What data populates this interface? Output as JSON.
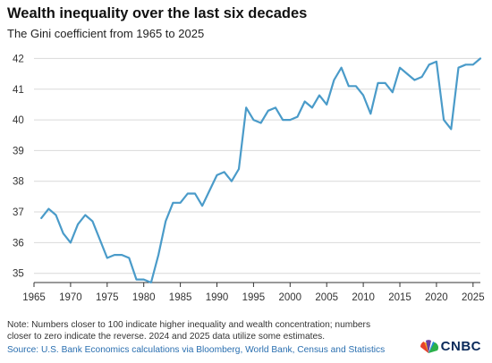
{
  "header": {
    "title": "Wealth inequality over the last six decades",
    "subtitle": "The Gini coefficient from 1965 to 2025"
  },
  "footer": {
    "note": "Note: Numbers closer to 100 indicate higher inequality and wealth concentration; numbers closer to zero indicate the reverse. 2024 and 2025 data utilize some estimates.",
    "source": "Source: U.S. Bank Economics calculations via Bloomberg, World Bank, Census and Statistics",
    "logo": "CNBC"
  },
  "colors": {
    "line": "#4a9bc9",
    "grid": "#d9d9d9",
    "axis": "#333333"
  },
  "chart_data": {
    "type": "line",
    "title": "Wealth inequality over the last six decades",
    "subtitle": "The Gini coefficient from 1965 to 2025",
    "xlabel": "",
    "ylabel": "",
    "xlim": [
      1965,
      2026
    ],
    "ylim": [
      34.7,
      42.1
    ],
    "x_ticks": [
      1965,
      1970,
      1975,
      1980,
      1985,
      1990,
      1995,
      2000,
      2005,
      2010,
      2015,
      2020,
      2025
    ],
    "y_ticks": [
      35,
      36,
      37,
      38,
      39,
      40,
      41,
      42
    ],
    "grid": "horizontal",
    "series": [
      {
        "name": "",
        "x": [
          1966,
          1967,
          1968,
          1969,
          1970,
          1971,
          1972,
          1973,
          1974,
          1975,
          1976,
          1977,
          1978,
          1979,
          1980,
          1981,
          1982,
          1983,
          1984,
          1985,
          1986,
          1987,
          1988,
          1989,
          1990,
          1991,
          1992,
          1993,
          1994,
          1995,
          1996,
          1997,
          1998,
          1999,
          2000,
          2001,
          2002,
          2003,
          2004,
          2005,
          2006,
          2007,
          2008,
          2009,
          2010,
          2011,
          2012,
          2013,
          2014,
          2015,
          2016,
          2017,
          2018,
          2019,
          2020,
          2021,
          2022,
          2023,
          2024,
          2025,
          2026
        ],
        "values": [
          36.8,
          37.1,
          36.9,
          36.3,
          36.0,
          36.6,
          36.9,
          36.7,
          36.1,
          35.5,
          35.6,
          35.6,
          35.5,
          34.8,
          34.8,
          34.7,
          35.6,
          36.7,
          37.3,
          37.3,
          37.6,
          37.6,
          37.2,
          37.7,
          38.2,
          38.3,
          38.0,
          38.4,
          40.4,
          40.0,
          39.9,
          40.3,
          40.4,
          40.0,
          40.0,
          40.1,
          40.6,
          40.4,
          40.8,
          40.5,
          41.3,
          41.7,
          41.1,
          41.1,
          40.8,
          40.2,
          41.2,
          41.2,
          40.9,
          41.7,
          41.5,
          41.3,
          41.4,
          41.8,
          41.9,
          40.0,
          39.7,
          41.7,
          41.8,
          41.8,
          42.0
        ]
      }
    ]
  }
}
